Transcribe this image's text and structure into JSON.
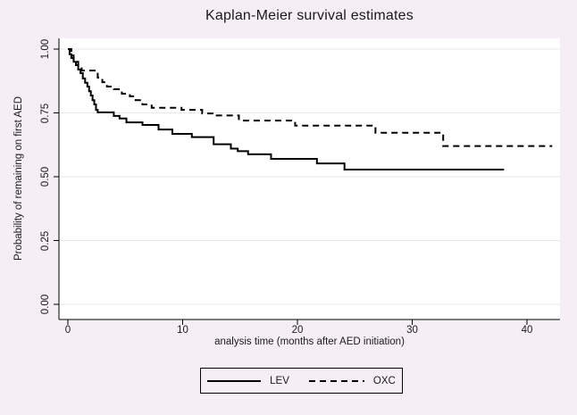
{
  "figure": {
    "background_color": "#f5eff5",
    "plot_background_color": "#ffffff",
    "gridline_color": "#e8e8e8",
    "axis_color": "#000000",
    "text_color": "#1a1a1a"
  },
  "chart_data": {
    "type": "line",
    "subtype": "kaplan-meier-step-function",
    "title": "Kaplan-Meier survival estimates",
    "xlabel": "analysis time (months after AED initiation)",
    "ylabel": "Probability of remaining on first AED",
    "xlim": [
      0,
      43
    ],
    "ylim": [
      0,
      1.0
    ],
    "grid": true,
    "legend_position": "bottom-center",
    "x_ticks": {
      "values": [
        0,
        10,
        20,
        30,
        40
      ],
      "labels": [
        "0",
        "10",
        "20",
        "30",
        "40"
      ]
    },
    "y_ticks": {
      "values": [
        0,
        0.25,
        0.5,
        0.75,
        1
      ],
      "labels": [
        "0.00",
        "0.25",
        "0.50",
        "0.75",
        "1.00"
      ]
    },
    "series": [
      {
        "name": "LEV",
        "line_style": "solid",
        "color": "#000000",
        "steps": [
          [
            0,
            1.0
          ],
          [
            0.15,
            0.98
          ],
          [
            0.3,
            0.965
          ],
          [
            0.5,
            0.95
          ],
          [
            0.7,
            0.937
          ],
          [
            0.9,
            0.92
          ],
          [
            1.1,
            0.906
          ],
          [
            1.3,
            0.885
          ],
          [
            1.5,
            0.868
          ],
          [
            1.7,
            0.853
          ],
          [
            1.85,
            0.835
          ],
          [
            2.0,
            0.818
          ],
          [
            2.15,
            0.8
          ],
          [
            2.3,
            0.783
          ],
          [
            2.45,
            0.762
          ],
          [
            2.6,
            0.752
          ],
          [
            4.0,
            0.738
          ],
          [
            4.5,
            0.728
          ],
          [
            5.1,
            0.713
          ],
          [
            6.5,
            0.703
          ],
          [
            7.9,
            0.685
          ],
          [
            9.1,
            0.668
          ],
          [
            10.8,
            0.655
          ],
          [
            12.7,
            0.627
          ],
          [
            14.2,
            0.61
          ],
          [
            14.8,
            0.6
          ],
          [
            15.7,
            0.588
          ],
          [
            17.7,
            0.57
          ],
          [
            21.7,
            0.552
          ],
          [
            24.1,
            0.528
          ]
        ],
        "end_month": 38
      },
      {
        "name": "OXC",
        "line_style": "dashed",
        "color": "#000000",
        "steps": [
          [
            0,
            1.0
          ],
          [
            0.3,
            0.975
          ],
          [
            0.5,
            0.95
          ],
          [
            0.9,
            0.93
          ],
          [
            1.2,
            0.916
          ],
          [
            2.6,
            0.888
          ],
          [
            3.0,
            0.87
          ],
          [
            3.4,
            0.853
          ],
          [
            4.0,
            0.843
          ],
          [
            4.7,
            0.825
          ],
          [
            5.4,
            0.815
          ],
          [
            5.9,
            0.8
          ],
          [
            6.5,
            0.783
          ],
          [
            7.3,
            0.77
          ],
          [
            9.9,
            0.762
          ],
          [
            11.7,
            0.748
          ],
          [
            12.8,
            0.74
          ],
          [
            14.9,
            0.72
          ],
          [
            19.8,
            0.7
          ],
          [
            26.8,
            0.672
          ],
          [
            32.7,
            0.62
          ]
        ],
        "end_month": 42.2
      }
    ]
  },
  "legend": {
    "items": [
      {
        "label": "LEV",
        "style": "solid"
      },
      {
        "label": "OXC",
        "style": "dashed"
      }
    ]
  }
}
